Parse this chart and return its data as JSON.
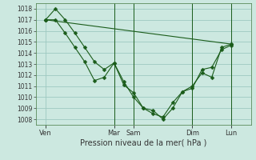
{
  "xlabel": "Pression niveau de la mer( hPa )",
  "ylim": [
    1007.5,
    1018.5
  ],
  "yticks": [
    1008,
    1009,
    1010,
    1011,
    1012,
    1013,
    1014,
    1015,
    1016,
    1017,
    1018
  ],
  "bg_color": "#cce8e0",
  "grid_color": "#9dc8c0",
  "line_color": "#1a5c1a",
  "xlim": [
    0,
    132
  ],
  "xtick_positions": [
    6,
    48,
    60,
    96,
    120
  ],
  "xtick_labels": [
    "Ven",
    "Mar",
    "Sam",
    "Dim",
    "Lun"
  ],
  "vline_positions": [
    48,
    60,
    96,
    120
  ],
  "series1": {
    "x": [
      6,
      120
    ],
    "y": [
      1017.0,
      1014.8
    ]
  },
  "series2": {
    "x": [
      6,
      12,
      18,
      24,
      30,
      36,
      42,
      48,
      54,
      60,
      66,
      72,
      78,
      84,
      90,
      96,
      102,
      108,
      114,
      120
    ],
    "y": [
      1017.0,
      1018.0,
      1017.0,
      1015.8,
      1014.5,
      1013.2,
      1012.5,
      1013.1,
      1011.1,
      1010.4,
      1009.0,
      1008.8,
      1008.0,
      1009.0,
      1010.5,
      1010.8,
      1012.5,
      1012.7,
      1014.3,
      1014.7
    ]
  },
  "series3": {
    "x": [
      6,
      12,
      18,
      24,
      30,
      36,
      42,
      48,
      54,
      60,
      66,
      72,
      78,
      84,
      90,
      96,
      102,
      108,
      114,
      120
    ],
    "y": [
      1017.0,
      1017.0,
      1015.8,
      1014.5,
      1013.2,
      1011.5,
      1011.8,
      1013.1,
      1011.4,
      1010.0,
      1009.0,
      1008.5,
      1008.2,
      1009.5,
      1010.5,
      1011.0,
      1012.2,
      1011.8,
      1014.5,
      1014.8
    ]
  }
}
